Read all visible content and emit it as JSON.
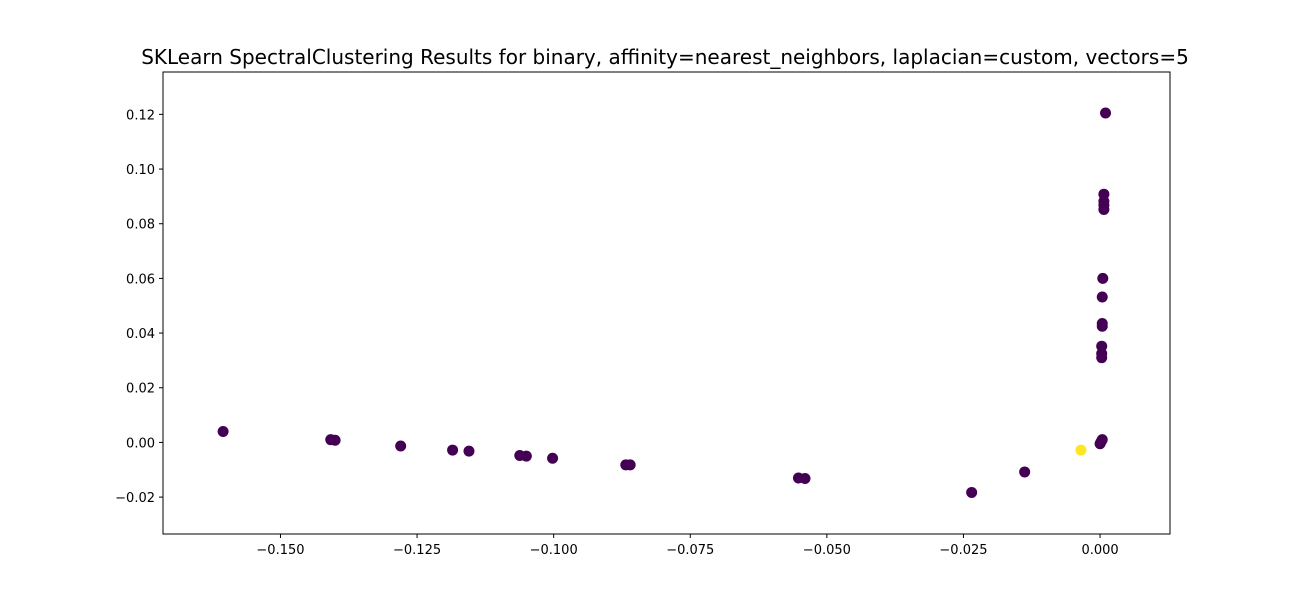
{
  "chart_data": {
    "type": "scatter",
    "title": "SKLearn SpectralClustering Results for binary, affinity=nearest_neighbors, laplacian=custom, vectors=5",
    "xlabel": "",
    "ylabel": "",
    "xlim": [
      -0.1715,
      0.0128
    ],
    "ylim": [
      -0.0335,
      0.1355
    ],
    "x_ticks": [
      -0.15,
      -0.125,
      -0.1,
      -0.075,
      -0.05,
      -0.025,
      0.0
    ],
    "x_tick_labels": [
      "−0.150",
      "−0.125",
      "−0.100",
      "−0.075",
      "−0.050",
      "−0.025",
      "0.000"
    ],
    "y_ticks": [
      -0.02,
      0.0,
      0.02,
      0.04,
      0.06,
      0.08,
      0.1,
      0.12
    ],
    "y_tick_labels": [
      "−0.02",
      "0.00",
      "0.02",
      "0.04",
      "0.06",
      "0.08",
      "0.10",
      "0.12"
    ],
    "grid": false,
    "colors": {
      "cluster_0": "#440154",
      "cluster_1": "#fde725"
    },
    "series": [
      {
        "cluster": 0,
        "color": "#440154",
        "points": [
          {
            "x": -0.1605,
            "y": 0.004
          },
          {
            "x": -0.1408,
            "y": 0.001
          },
          {
            "x": -0.14,
            "y": 0.0008
          },
          {
            "x": -0.128,
            "y": -0.0013
          },
          {
            "x": -0.1185,
            "y": -0.0028
          },
          {
            "x": -0.1155,
            "y": -0.0032
          },
          {
            "x": -0.1062,
            "y": -0.0048
          },
          {
            "x": -0.105,
            "y": -0.005
          },
          {
            "x": -0.1002,
            "y": -0.0058
          },
          {
            "x": -0.0868,
            "y": -0.0082
          },
          {
            "x": -0.086,
            "y": -0.0082
          },
          {
            "x": -0.0552,
            "y": -0.013
          },
          {
            "x": -0.054,
            "y": -0.0132
          },
          {
            "x": -0.0235,
            "y": -0.0183
          },
          {
            "x": -0.0138,
            "y": -0.0108
          },
          {
            "x": 0.0,
            "y": -0.0005
          },
          {
            "x": 0.0002,
            "y": 0.0003
          },
          {
            "x": 0.0004,
            "y": 0.001
          },
          {
            "x": 0.0003,
            "y": 0.031
          },
          {
            "x": 0.0003,
            "y": 0.0325
          },
          {
            "x": 0.0003,
            "y": 0.0352
          },
          {
            "x": 0.0004,
            "y": 0.0425
          },
          {
            "x": 0.0004,
            "y": 0.0435
          },
          {
            "x": 0.0004,
            "y": 0.0532
          },
          {
            "x": 0.0005,
            "y": 0.06
          },
          {
            "x": 0.0007,
            "y": 0.0852
          },
          {
            "x": 0.0007,
            "y": 0.0868
          },
          {
            "x": 0.0007,
            "y": 0.0882
          },
          {
            "x": 0.0007,
            "y": 0.0908
          },
          {
            "x": 0.001,
            "y": 0.1205
          }
        ]
      },
      {
        "cluster": 1,
        "color": "#fde725",
        "points": [
          {
            "x": -0.0035,
            "y": -0.0028
          }
        ]
      }
    ]
  }
}
